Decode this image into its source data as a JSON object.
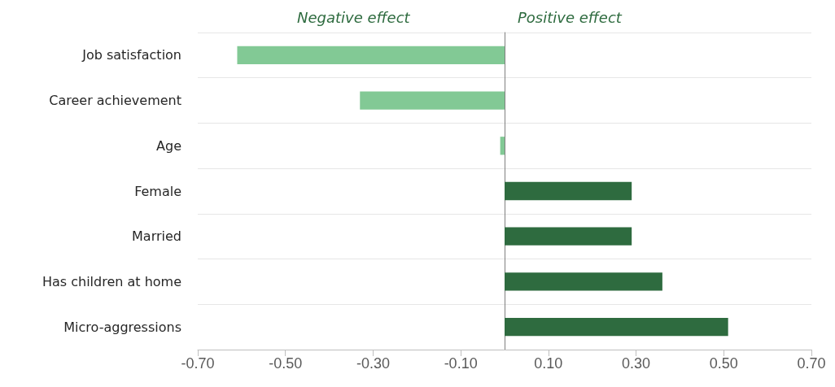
{
  "chart_data": {
    "type": "bar",
    "orientation": "horizontal",
    "categories": [
      "Job satisfaction",
      "Career achievement",
      "Age",
      "Female",
      "Married",
      "Has children at home",
      "Micro-aggressions"
    ],
    "values": [
      -0.61,
      -0.33,
      -0.01,
      0.29,
      0.29,
      0.36,
      0.51
    ],
    "colors": [
      "#82c995",
      "#82c995",
      "#82c995",
      "#2e6b3f",
      "#2e6b3f",
      "#2e6b3f",
      "#2e6b3f"
    ],
    "xlim": [
      -0.7,
      0.7
    ],
    "xticks": [
      {
        "value": -0.7,
        "label": "-0.70"
      },
      {
        "value": -0.5,
        "label": "-0.50"
      },
      {
        "value": -0.3,
        "label": "-0.30"
      },
      {
        "value": -0.1,
        "label": "-0.10"
      },
      {
        "value": 0.1,
        "label": "0.10"
      },
      {
        "value": 0.3,
        "label": "0.30"
      },
      {
        "value": 0.5,
        "label": "0.50"
      },
      {
        "value": 0.7,
        "label": "0.70"
      }
    ],
    "annotations": [
      "Negative effect",
      "Positive effect"
    ],
    "grid": "y"
  }
}
